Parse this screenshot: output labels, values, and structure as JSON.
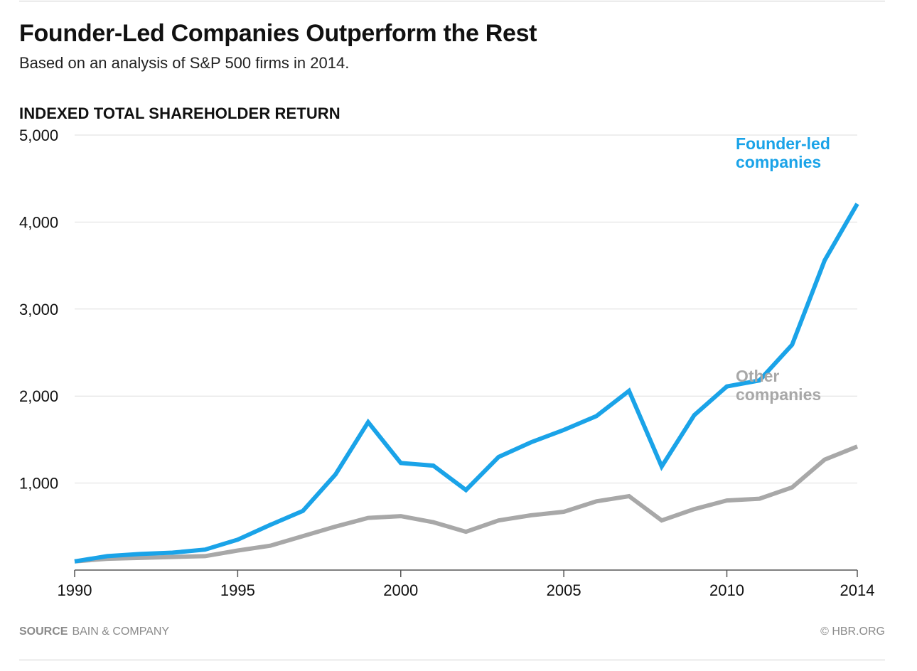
{
  "header": {
    "title": "Founder-Led Companies Outperform the Rest",
    "subtitle": "Based on an analysis of S&P 500 firms in 2014."
  },
  "footer": {
    "source_label": "SOURCE",
    "source": "BAIN & COMPANY",
    "copyright": "© HBR.ORG"
  },
  "chart_data": {
    "type": "line",
    "title": "Founder-Led Companies Outperform the Rest",
    "subtitle": "Based on an analysis of S&P 500 firms in 2014.",
    "ylabel": "INDEXED TOTAL SHAREHOLDER RETURN",
    "xlabel": "",
    "xlim": [
      1990,
      2014
    ],
    "ylim": [
      0,
      5000
    ],
    "yticks": [
      1000,
      2000,
      3000,
      4000,
      5000
    ],
    "ytick_labels": [
      "1,000",
      "2,000",
      "3,000",
      "4,000",
      "5,000"
    ],
    "xticks": [
      1990,
      1995,
      2000,
      2005,
      2010,
      2014
    ],
    "xtick_labels": [
      "1990",
      "1995",
      "2000",
      "2005",
      "2010",
      "2014"
    ],
    "grid": true,
    "legend": "direct labels at right end of lines",
    "x": [
      1990,
      1991,
      1992,
      1993,
      1994,
      1995,
      1996,
      1997,
      1998,
      1999,
      2000,
      2001,
      2002,
      2003,
      2004,
      2005,
      2006,
      2007,
      2008,
      2009,
      2010,
      2011,
      2012,
      2013,
      2014
    ],
    "series": [
      {
        "name": "Founder-led companies",
        "label_lines": [
          "Founder-led",
          "companies"
        ],
        "color": "#1aa3e8",
        "values": [
          100,
          160,
          185,
          200,
          235,
          350,
          520,
          680,
          1100,
          1700,
          1230,
          1200,
          920,
          1300,
          1470,
          1610,
          1770,
          2060,
          1190,
          1780,
          2110,
          2180,
          2590,
          3560,
          4210
        ]
      },
      {
        "name": "Other companies",
        "label_lines": [
          "Other",
          "companies"
        ],
        "color": "#a8a8a8",
        "values": [
          100,
          130,
          140,
          150,
          160,
          225,
          280,
          390,
          500,
          600,
          620,
          550,
          440,
          570,
          630,
          670,
          790,
          850,
          570,
          700,
          800,
          820,
          950,
          1270,
          1420
        ]
      }
    ]
  }
}
